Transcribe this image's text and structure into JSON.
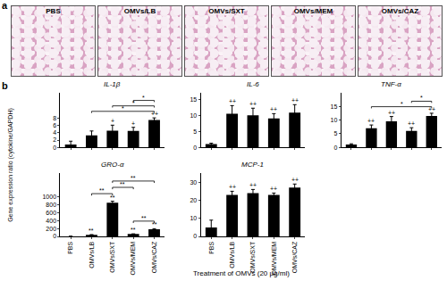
{
  "panel_a": {
    "label": "a",
    "images": [
      "PBS",
      "OMVs/LB",
      "OMVs/SXT",
      "OMVs/MEM",
      "OMVs/CAZ"
    ]
  },
  "panel_b_label": "b",
  "x_title": "Treatment of OMVs (20 μg/ml)",
  "y_title": "Gene expression ratio (cytokine/GAPDH)",
  "chart_data": [
    {
      "type": "bar",
      "title": "IL-1β",
      "categories": [
        "PBS",
        "OMVs/LB",
        "OMVs/SXT",
        "OMVs/MEM",
        "OMVs/CAZ"
      ],
      "values": [
        0.8,
        3.3,
        4.6,
        4.5,
        7.5
      ],
      "errors": [
        0.9,
        1.2,
        1.5,
        1.0,
        0.6
      ],
      "color": "#000000",
      "marks": [
        null,
        null,
        "+",
        "+",
        "++"
      ],
      "comparisons": [
        {
          "from": "OMVs/LB",
          "to": "OMVs/CAZ",
          "text": "*"
        },
        {
          "from": "OMVs/SXT",
          "to": "OMVs/CAZ",
          "text": "*"
        },
        {
          "from": "OMVs/MEM",
          "to": "OMVs/CAZ",
          "text": "*"
        }
      ],
      "ylim": [
        0,
        15
      ],
      "yticks": [
        0,
        2,
        4,
        6,
        8
      ],
      "grid": false,
      "tick_labels": "y"
    },
    {
      "type": "bar",
      "title": "IL-6",
      "categories": [
        "PBS",
        "OMVs/LB",
        "OMVs/SXT",
        "OMVs/MEM",
        "OMVs/CAZ"
      ],
      "values": [
        1,
        10.5,
        10,
        9,
        10.8
      ],
      "errors": [
        0.3,
        2.5,
        2.2,
        1.5,
        2.5
      ],
      "color": "#000000",
      "marks": [
        null,
        "++",
        "++",
        "++",
        "++"
      ],
      "comparisons": [],
      "ylim": [
        0,
        17
      ],
      "yticks": [
        0,
        5,
        10,
        15
      ],
      "grid": false,
      "tick_labels": "y"
    },
    {
      "type": "bar",
      "title": "TNF-α",
      "categories": [
        "PBS",
        "OMVs/LB",
        "OMVs/SXT",
        "OMVs/MEM",
        "OMVs/CAZ"
      ],
      "values": [
        1,
        7,
        9.5,
        6,
        11.5
      ],
      "errors": [
        0.3,
        1.2,
        1.8,
        1.2,
        1.0
      ],
      "color": "#000000",
      "marks": [
        null,
        "++",
        "++",
        "++",
        "++"
      ],
      "comparisons": [
        {
          "from": "OMVs/LB",
          "to": "OMVs/CAZ",
          "text": "*"
        },
        {
          "from": "OMVs/MEM",
          "to": "OMVs/CAZ",
          "text": "*"
        }
      ],
      "ylim": [
        0,
        20
      ],
      "yticks": [
        0,
        5,
        10,
        15
      ],
      "grid": false,
      "tick_labels": "y"
    },
    {
      "type": "bar",
      "title": "GRO-α",
      "categories": [
        "PBS",
        "OMVs/LB",
        "OMVs/SXT",
        "OMVs/MEM",
        "OMVs/CAZ"
      ],
      "values": [
        2,
        40,
        850,
        60,
        180
      ],
      "errors": [
        1,
        5,
        40,
        5,
        15
      ],
      "color": "#000000",
      "marks": [
        null,
        "**",
        "**",
        "**",
        "**"
      ],
      "comparisons": [
        {
          "from": "OMVs/MEM",
          "to": "OMVs/CAZ",
          "text": "**"
        },
        {
          "from": "OMVs/LB",
          "to": "OMVs/SXT",
          "text": "**"
        },
        {
          "from": "OMVs/SXT",
          "to": "OMVs/MEM",
          "text": "**"
        },
        {
          "from": "OMVs/SXT",
          "to": "OMVs/CAZ",
          "text": "**"
        }
      ],
      "ylim": [
        0,
        1600
      ],
      "yticks": [
        0,
        200,
        400,
        600,
        800,
        1000
      ],
      "grid": false
    },
    {
      "type": "bar",
      "title": "MCP-1",
      "categories": [
        "PBS",
        "OMVs/LB",
        "OMVs/SXT",
        "OMVs/MEM",
        "OMVs/CAZ"
      ],
      "values": [
        5,
        23,
        24,
        23,
        27
      ],
      "errors": [
        4,
        2,
        2,
        1,
        2
      ],
      "color": "#000000",
      "marks": [
        null,
        "++",
        "++",
        "++",
        "++"
      ],
      "comparisons": [],
      "ylim": [
        0,
        35
      ],
      "yticks": [
        0,
        10,
        20,
        30
      ],
      "grid": false
    }
  ]
}
